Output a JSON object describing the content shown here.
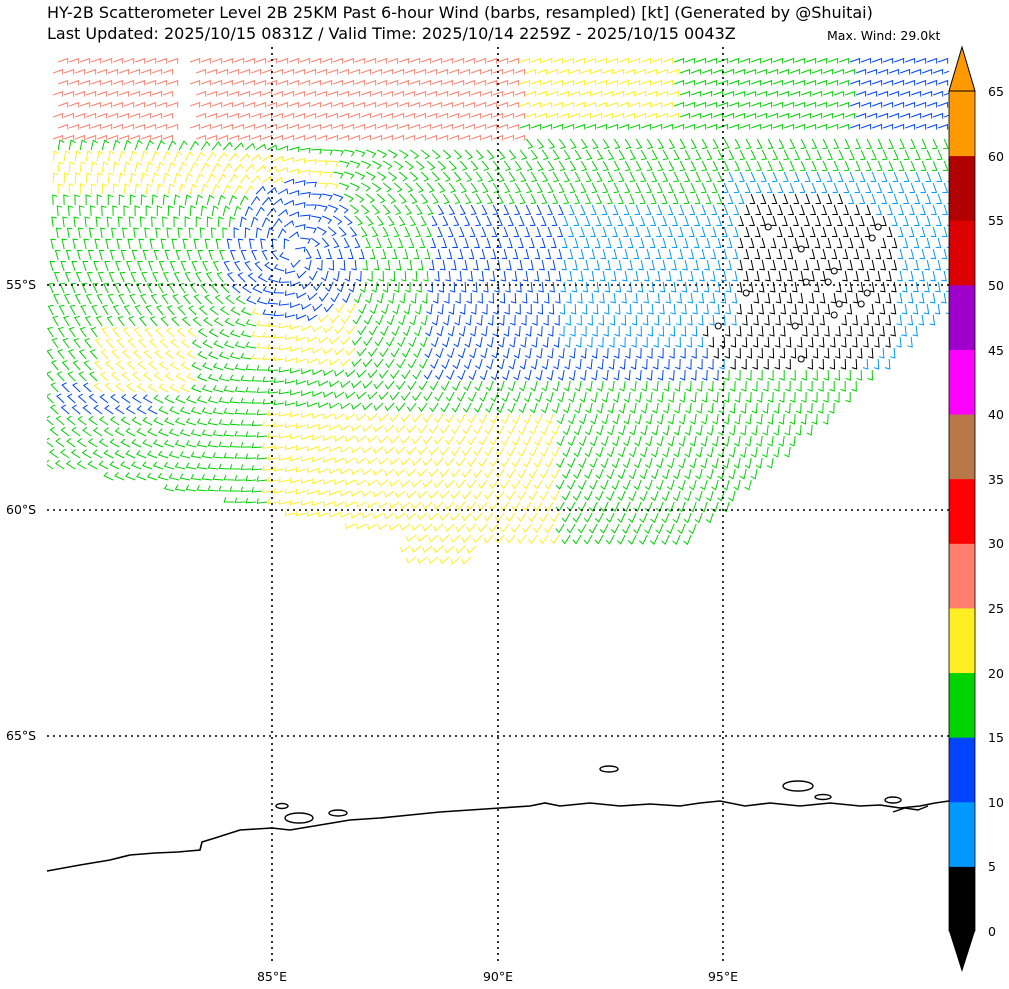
{
  "header": {
    "title_line1": "HY-2B Scatterometer Level 2B 25KM Past 6-hour Wind (barbs, resampled) [kt] (Generated by @Shuitai)",
    "title_line2": "Last Updated: 2025/10/15 0831Z / Valid Time: 2025/10/14 2259Z - 2025/10/15 0043Z",
    "max_wind": "Max. Wind: 29.0kt"
  },
  "grid": {
    "lat_labels": [
      "55°S",
      "60°S",
      "65°S"
    ],
    "lon_labels": [
      "85°E",
      "90°E",
      "95°E"
    ]
  },
  "colorbar": {
    "units": "kt",
    "tick_labels": [
      "0",
      "5",
      "10",
      "15",
      "20",
      "25",
      "30",
      "35",
      "40",
      "45",
      "50",
      "55",
      "60",
      "65"
    ],
    "colors": [
      "#000000",
      "#0099ff",
      "#0044ff",
      "#00d400",
      "#ffee22",
      "#ff7f6e",
      "#ff0000",
      "#b87848",
      "#ff00ff",
      "#a000cc",
      "#dd0000",
      "#b00000",
      "#ff9900"
    ]
  },
  "map": {
    "wind_field_colors": {
      "calm": "#000000",
      "5_10kt": "#0099ff",
      "10_15kt": "#0044ff",
      "15_20kt": "#00d400",
      "20_25kt": "#ffee22",
      "25_30kt": "#ff7f6e"
    },
    "coastline": "Antarctica coast (Queen Mary Land)"
  }
}
